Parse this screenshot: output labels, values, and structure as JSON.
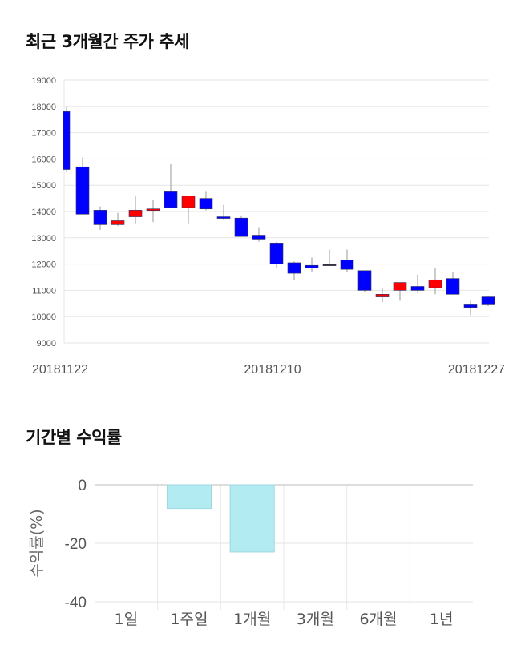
{
  "titles": {
    "price": "최근 3개월간 주가 추세",
    "returns": "기간별 수익률"
  },
  "chart_data": [
    {
      "type": "candlestick",
      "ylim": [
        9000,
        19000
      ],
      "yticks": [
        9000,
        10000,
        11000,
        12000,
        13000,
        14000,
        15000,
        16000,
        17000,
        18000,
        19000
      ],
      "xtick_labels": [
        "20181122",
        "20181210",
        "20181227"
      ],
      "grid": true,
      "colors": {
        "up": "#ff0000",
        "down": "#0000ff"
      },
      "candles": [
        {
          "o": 17800,
          "c": 15600,
          "h": 18000,
          "l": 15500
        },
        {
          "o": 15700,
          "c": 13900,
          "h": 16050,
          "l": 13900
        },
        {
          "o": 14050,
          "c": 13500,
          "h": 14200,
          "l": 13300
        },
        {
          "o": 13500,
          "c": 13650,
          "h": 13950,
          "l": 13450
        },
        {
          "o": 13800,
          "c": 14050,
          "h": 14600,
          "l": 13550
        },
        {
          "o": 14050,
          "c": 14100,
          "h": 14450,
          "l": 13600
        },
        {
          "o": 14750,
          "c": 14150,
          "h": 15800,
          "l": 14150
        },
        {
          "o": 14150,
          "c": 14600,
          "h": 14600,
          "l": 13550
        },
        {
          "o": 14500,
          "c": 14100,
          "h": 14750,
          "l": 14050
        },
        {
          "o": 13800,
          "c": 13750,
          "h": 14250,
          "l": 13700
        },
        {
          "o": 13750,
          "c": 13050,
          "h": 13850,
          "l": 13050
        },
        {
          "o": 13100,
          "c": 12950,
          "h": 13400,
          "l": 12850
        },
        {
          "o": 12800,
          "c": 12000,
          "h": 12850,
          "l": 11850
        },
        {
          "o": 12050,
          "c": 11650,
          "h": 12100,
          "l": 11400
        },
        {
          "o": 11950,
          "c": 11850,
          "h": 12250,
          "l": 11700
        },
        {
          "o": 12000,
          "c": 12000,
          "h": 12550,
          "l": 11950
        },
        {
          "o": 12150,
          "c": 11800,
          "h": 12550,
          "l": 11700
        },
        {
          "o": 11750,
          "c": 11000,
          "h": 11750,
          "l": 10950
        },
        {
          "o": 10750,
          "c": 10850,
          "h": 11100,
          "l": 10550
        },
        {
          "o": 11000,
          "c": 11300,
          "h": 11300,
          "l": 10600
        },
        {
          "o": 11150,
          "c": 11000,
          "h": 11600,
          "l": 10900
        },
        {
          "o": 11100,
          "c": 11400,
          "h": 11850,
          "l": 10850
        },
        {
          "o": 11450,
          "c": 10850,
          "h": 11700,
          "l": 10850
        },
        {
          "o": 10450,
          "c": 10350,
          "h": 10600,
          "l": 10050
        },
        {
          "o": 10750,
          "c": 10450,
          "h": 10800,
          "l": 10400
        }
      ]
    },
    {
      "type": "bar",
      "categories": [
        "1일",
        "1주일",
        "1개월",
        "3개월",
        "6개월",
        "1년"
      ],
      "values": [
        0,
        -8.1,
        -23.0,
        0,
        0,
        0
      ],
      "ylabel": "수익률(%)",
      "ylim": [
        -40,
        0
      ],
      "yticks": [
        0,
        -20,
        -40
      ],
      "grid": true,
      "colors": {
        "bar": "#b2ebf2",
        "bar_border": "#9fd8e0"
      }
    }
  ]
}
